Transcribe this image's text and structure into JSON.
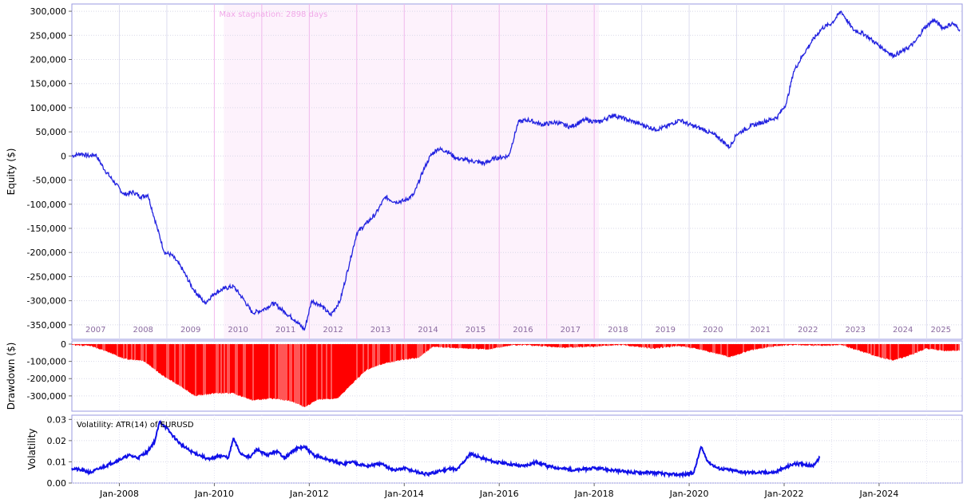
{
  "chart_data": [
    {
      "type": "line",
      "name": "equity-panel",
      "ylabel": "Equity ($)",
      "ylim": [
        -380000,
        315000
      ],
      "yticks": [
        300000,
        250000,
        200000,
        150000,
        100000,
        50000,
        0,
        -50000,
        -100000,
        -150000,
        -200000,
        -250000,
        -300000,
        -350000
      ],
      "ytick_labels": [
        "300,000",
        "250,000",
        "200,000",
        "150,000",
        "100,000",
        "50,000",
        "0",
        "-50,000",
        "-100,000",
        "-150,000",
        "-200,000",
        "-250,000",
        "-300,000",
        "-350,000"
      ],
      "annotation": "Max stagnation: 2898 days",
      "stagnation_range": [
        2010.2,
        2018.1
      ],
      "year_labels": [
        "2007",
        "2008",
        "2009",
        "2010",
        "2011",
        "2012",
        "2013",
        "2014",
        "2015",
        "2016",
        "2017",
        "2018",
        "2019",
        "2020",
        "2021",
        "2022",
        "2023",
        "2024",
        "2025"
      ],
      "color": "#2323e0",
      "grid": true,
      "points": [
        [
          2007.0,
          0
        ],
        [
          2007.2,
          5000
        ],
        [
          2007.35,
          0
        ],
        [
          2007.5,
          3000
        ],
        [
          2007.7,
          -30000
        ],
        [
          2007.9,
          -55000
        ],
        [
          2008.1,
          -80000
        ],
        [
          2008.3,
          -75000
        ],
        [
          2008.45,
          -85000
        ],
        [
          2008.6,
          -80000
        ],
        [
          2008.8,
          -150000
        ],
        [
          2008.95,
          -200000
        ],
        [
          2009.1,
          -205000
        ],
        [
          2009.3,
          -230000
        ],
        [
          2009.55,
          -275000
        ],
        [
          2009.8,
          -305000
        ],
        [
          2010.0,
          -285000
        ],
        [
          2010.2,
          -275000
        ],
        [
          2010.4,
          -270000
        ],
        [
          2010.6,
          -295000
        ],
        [
          2010.8,
          -325000
        ],
        [
          2011.0,
          -320000
        ],
        [
          2011.25,
          -305000
        ],
        [
          2011.5,
          -325000
        ],
        [
          2011.7,
          -340000
        ],
        [
          2011.9,
          -360000
        ],
        [
          2012.05,
          -300000
        ],
        [
          2012.25,
          -310000
        ],
        [
          2012.45,
          -330000
        ],
        [
          2012.65,
          -300000
        ],
        [
          2012.85,
          -220000
        ],
        [
          2013.0,
          -160000
        ],
        [
          2013.2,
          -140000
        ],
        [
          2013.4,
          -120000
        ],
        [
          2013.6,
          -85000
        ],
        [
          2013.8,
          -95000
        ],
        [
          2014.0,
          -93000
        ],
        [
          2014.2,
          -80000
        ],
        [
          2014.4,
          -30000
        ],
        [
          2014.55,
          0
        ],
        [
          2014.7,
          15000
        ],
        [
          2014.9,
          10000
        ],
        [
          2015.1,
          -5000
        ],
        [
          2015.4,
          -10000
        ],
        [
          2015.7,
          -15000
        ],
        [
          2015.9,
          -5000
        ],
        [
          2016.2,
          0
        ],
        [
          2016.4,
          70000
        ],
        [
          2016.6,
          75000
        ],
        [
          2016.9,
          65000
        ],
        [
          2017.2,
          70000
        ],
        [
          2017.5,
          60000
        ],
        [
          2017.8,
          75000
        ],
        [
          2018.1,
          70000
        ],
        [
          2018.4,
          85000
        ],
        [
          2018.7,
          75000
        ],
        [
          2019.0,
          65000
        ],
        [
          2019.3,
          55000
        ],
        [
          2019.5,
          60000
        ],
        [
          2019.8,
          75000
        ],
        [
          2020.0,
          65000
        ],
        [
          2020.3,
          55000
        ],
        [
          2020.6,
          40000
        ],
        [
          2020.85,
          18000
        ],
        [
          2021.0,
          45000
        ],
        [
          2021.3,
          62000
        ],
        [
          2021.6,
          72000
        ],
        [
          2021.85,
          80000
        ],
        [
          2022.05,
          110000
        ],
        [
          2022.2,
          175000
        ],
        [
          2022.4,
          210000
        ],
        [
          2022.6,
          240000
        ],
        [
          2022.8,
          265000
        ],
        [
          2023.0,
          275000
        ],
        [
          2023.2,
          300000
        ],
        [
          2023.45,
          262000
        ],
        [
          2023.7,
          252000
        ],
        [
          2023.85,
          240000
        ],
        [
          2024.05,
          225000
        ],
        [
          2024.3,
          208000
        ],
        [
          2024.55,
          220000
        ],
        [
          2024.75,
          235000
        ],
        [
          2024.95,
          265000
        ],
        [
          2025.15,
          282000
        ],
        [
          2025.35,
          265000
        ],
        [
          2025.55,
          275000
        ],
        [
          2025.7,
          262000
        ]
      ]
    },
    {
      "type": "area",
      "name": "drawdown-panel",
      "ylabel": "Drawdown ($)",
      "ylim": [
        -370000,
        0
      ],
      "yticks": [
        0,
        -100000,
        -200000,
        -300000
      ],
      "ytick_labels": [
        "0",
        "-100,000",
        "-200,000",
        "-300,000"
      ],
      "color": "#ff0000",
      "grid": true,
      "points": [
        [
          2007.0,
          -5000
        ],
        [
          2007.4,
          -10000
        ],
        [
          2007.8,
          -50000
        ],
        [
          2008.1,
          -85000
        ],
        [
          2008.5,
          -95000
        ],
        [
          2008.9,
          -180000
        ],
        [
          2009.2,
          -230000
        ],
        [
          2009.6,
          -300000
        ],
        [
          2010.0,
          -285000
        ],
        [
          2010.4,
          -285000
        ],
        [
          2010.8,
          -325000
        ],
        [
          2011.2,
          -315000
        ],
        [
          2011.6,
          -330000
        ],
        [
          2011.9,
          -365000
        ],
        [
          2012.2,
          -320000
        ],
        [
          2012.6,
          -315000
        ],
        [
          2012.9,
          -230000
        ],
        [
          2013.2,
          -150000
        ],
        [
          2013.6,
          -110000
        ],
        [
          2014.0,
          -90000
        ],
        [
          2014.3,
          -80000
        ],
        [
          2014.6,
          -15000
        ],
        [
          2015.2,
          -25000
        ],
        [
          2015.8,
          -30000
        ],
        [
          2016.3,
          -5000
        ],
        [
          2016.8,
          -10000
        ],
        [
          2017.4,
          -20000
        ],
        [
          2018.0,
          -15000
        ],
        [
          2018.6,
          -5000
        ],
        [
          2019.2,
          -25000
        ],
        [
          2019.8,
          -10000
        ],
        [
          2020.3,
          -35000
        ],
        [
          2020.85,
          -75000
        ],
        [
          2021.3,
          -35000
        ],
        [
          2021.85,
          -10000
        ],
        [
          2022.2,
          -5000
        ],
        [
          2022.8,
          -10000
        ],
        [
          2023.2,
          -5000
        ],
        [
          2023.6,
          -40000
        ],
        [
          2024.0,
          -75000
        ],
        [
          2024.3,
          -95000
        ],
        [
          2024.7,
          -60000
        ],
        [
          2025.0,
          -25000
        ],
        [
          2025.4,
          -40000
        ],
        [
          2025.7,
          -35000
        ]
      ]
    },
    {
      "type": "line",
      "name": "volatility-panel",
      "ylabel": "Volatility",
      "ylim": [
        0,
        0.032
      ],
      "yticks": [
        0.0,
        0.01,
        0.02,
        0.03
      ],
      "ytick_labels": [
        "0.00",
        "0.01",
        "0.02",
        "0.03"
      ],
      "legend": "Volatility: ATR(14) of EURUSD",
      "xticks": [
        2008,
        2010,
        2012,
        2014,
        2016,
        2018,
        2020,
        2022,
        2024
      ],
      "xtick_labels": [
        "Jan-2008",
        "Jan-2010",
        "Jan-2012",
        "Jan-2014",
        "Jan-2016",
        "Jan-2018",
        "Jan-2020",
        "Jan-2022",
        "Jan-2024"
      ],
      "color": "#1010e8",
      "grid": true,
      "points": [
        [
          2007.0,
          0.007
        ],
        [
          2007.2,
          0.006
        ],
        [
          2007.4,
          0.005
        ],
        [
          2007.6,
          0.007
        ],
        [
          2007.8,
          0.009
        ],
        [
          2008.0,
          0.011
        ],
        [
          2008.2,
          0.013
        ],
        [
          2008.4,
          0.012
        ],
        [
          2008.6,
          0.015
        ],
        [
          2008.75,
          0.02
        ],
        [
          2008.85,
          0.029
        ],
        [
          2008.95,
          0.027
        ],
        [
          2009.1,
          0.023
        ],
        [
          2009.3,
          0.018
        ],
        [
          2009.5,
          0.015
        ],
        [
          2009.7,
          0.013
        ],
        [
          2009.9,
          0.011
        ],
        [
          2010.1,
          0.013
        ],
        [
          2010.3,
          0.012
        ],
        [
          2010.4,
          0.021
        ],
        [
          2010.55,
          0.014
        ],
        [
          2010.75,
          0.012
        ],
        [
          2010.9,
          0.016
        ],
        [
          2011.1,
          0.013
        ],
        [
          2011.3,
          0.015
        ],
        [
          2011.5,
          0.012
        ],
        [
          2011.7,
          0.016
        ],
        [
          2011.9,
          0.017
        ],
        [
          2012.1,
          0.013
        ],
        [
          2012.4,
          0.011
        ],
        [
          2012.7,
          0.009
        ],
        [
          2012.9,
          0.01
        ],
        [
          2013.2,
          0.008
        ],
        [
          2013.5,
          0.009
        ],
        [
          2013.8,
          0.006
        ],
        [
          2014.0,
          0.007
        ],
        [
          2014.3,
          0.005
        ],
        [
          2014.5,
          0.004
        ],
        [
          2014.8,
          0.006
        ],
        [
          2015.0,
          0.007
        ],
        [
          2015.1,
          0.006
        ],
        [
          2015.4,
          0.014
        ],
        [
          2015.6,
          0.012
        ],
        [
          2015.9,
          0.01
        ],
        [
          2016.2,
          0.009
        ],
        [
          2016.5,
          0.008
        ],
        [
          2016.8,
          0.01
        ],
        [
          2017.0,
          0.008
        ],
        [
          2017.3,
          0.007
        ],
        [
          2017.6,
          0.006
        ],
        [
          2018.0,
          0.007
        ],
        [
          2018.4,
          0.006
        ],
        [
          2018.8,
          0.005
        ],
        [
          2019.2,
          0.005
        ],
        [
          2019.6,
          0.004
        ],
        [
          2019.9,
          0.004
        ],
        [
          2020.1,
          0.005
        ],
        [
          2020.25,
          0.017
        ],
        [
          2020.4,
          0.01
        ],
        [
          2020.6,
          0.007
        ],
        [
          2020.9,
          0.006
        ],
        [
          2021.2,
          0.005
        ],
        [
          2021.5,
          0.005
        ],
        [
          2021.8,
          0.005
        ],
        [
          2022.0,
          0.007
        ],
        [
          2022.2,
          0.009
        ],
        [
          2022.4,
          0.009
        ],
        [
          2022.6,
          0.008
        ],
        [
          2022.75,
          0.012
        ]
      ]
    }
  ]
}
